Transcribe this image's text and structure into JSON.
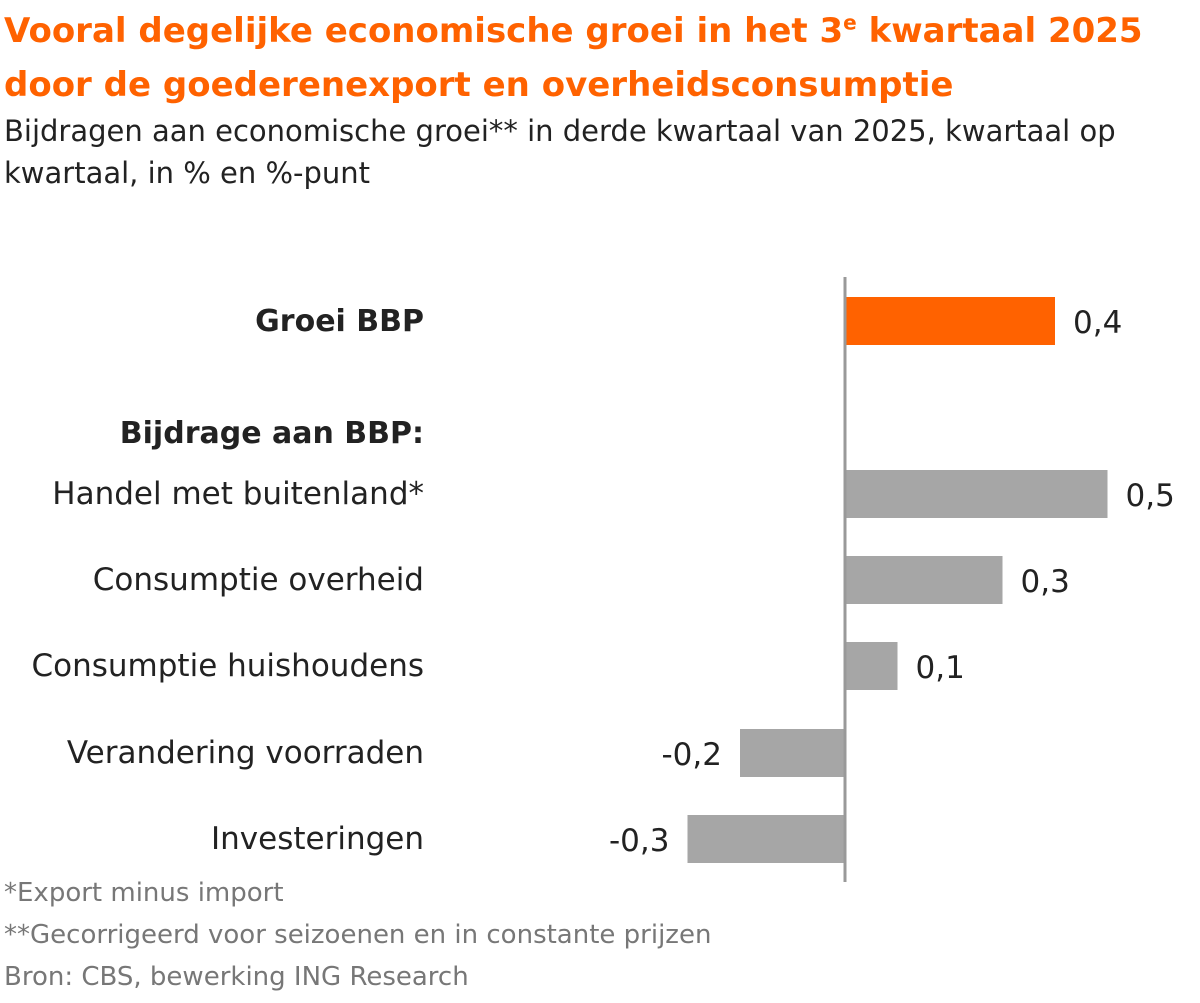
{
  "title": {
    "pre": "Vooral degelijke economische groei in het 3",
    "sup": "e",
    "post": " kwartaal 2025 door de goederenexport en overheidsconsumptie"
  },
  "subtitle": "Bijdragen aan economische groei** in derde kwartaal van 2025, kwartaal op kwartaal, in % en %-punt",
  "footnotes": [
    "*Export minus import",
    "**Gecorrigeerd voor seizoenen en in constante prijzen",
    "Bron: CBS, bewerking ING Research"
  ],
  "colors": {
    "accent": "#ff6200",
    "bar": "#a6a6a6",
    "axis": "#999999",
    "text": "#222222"
  },
  "chart_data": {
    "type": "bar",
    "orientation": "horizontal",
    "grid": false,
    "section_label": "Bijdrage aan BBP:",
    "categories": [
      "Groei BBP",
      "Handel met buitenland*",
      "Consumptie overheid",
      "Consumptie huishoudens",
      "Verandering voorraden",
      "Investeringen"
    ],
    "values": [
      0.4,
      0.5,
      0.3,
      0.1,
      -0.2,
      -0.3
    ],
    "value_labels": [
      "0,4",
      "0,5",
      "0,3",
      "0,1",
      "-0,2",
      "-0,3"
    ],
    "highlight": [
      true,
      false,
      false,
      false,
      false,
      false
    ],
    "xlim": [
      -0.35,
      0.6
    ]
  }
}
